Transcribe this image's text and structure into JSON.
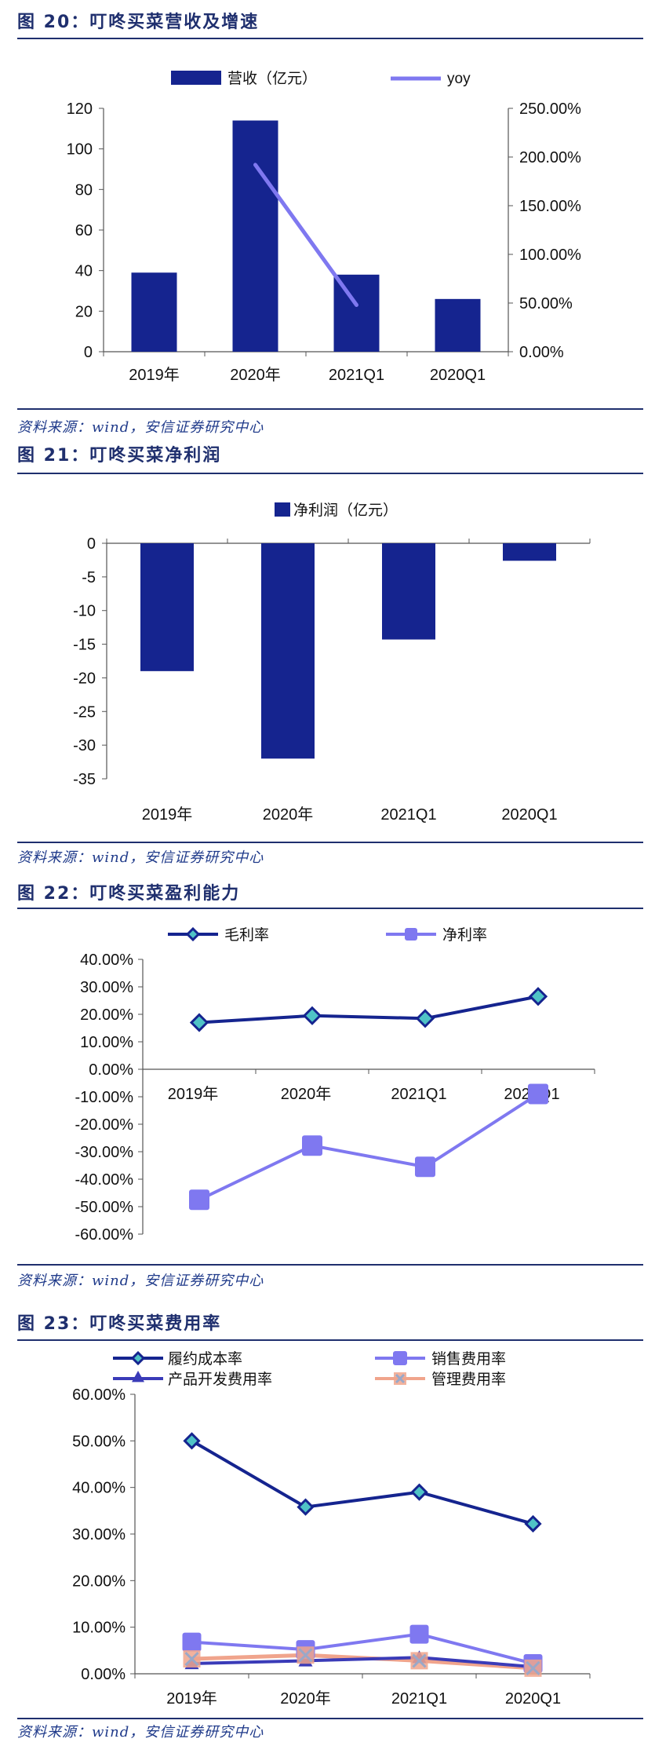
{
  "colors": {
    "navy": "#15248f",
    "lavender": "#7f78f0",
    "salmon": "#f0a48c",
    "teal": "#4fc3c6",
    "title": "#1f2f6e"
  },
  "source_text": "资料来源：wind，安信证券研究中心",
  "charts": [
    {
      "fig_label": "图 20：",
      "fig_title": "叮咚买菜营收及增速",
      "chart_data": {
        "type": "bar+line",
        "categories": [
          "2019年",
          "2020年",
          "2021Q1",
          "2020Q1"
        ],
        "bar_series": {
          "name": "营收（亿元）",
          "values": [
            39,
            114,
            38,
            26
          ]
        },
        "line_series": {
          "name": "yoy",
          "values": [
            null,
            192,
            48,
            null
          ]
        },
        "y_left": {
          "min": 0,
          "max": 120,
          "ticks": [
            "0",
            "20",
            "40",
            "60",
            "80",
            "100",
            "120"
          ]
        },
        "y_right": {
          "min": 0,
          "max": 250,
          "ticks": [
            "0.00%",
            "50.00%",
            "100.00%",
            "150.00%",
            "200.00%",
            "250.00%"
          ]
        }
      }
    },
    {
      "fig_label": "图 21：",
      "fig_title": "叮咚买菜净利润",
      "chart_data": {
        "type": "bar",
        "categories": [
          "2019年",
          "2020年",
          "2021Q1",
          "2020Q1"
        ],
        "series": [
          {
            "name": "净利润（亿元）",
            "values": [
              -19,
              -32,
              -14.3,
              -2.6
            ]
          }
        ],
        "y": {
          "min": -35,
          "max": 0,
          "ticks": [
            "0",
            "-5",
            "-10",
            "-15",
            "-20",
            "-25",
            "-30",
            "-35"
          ]
        }
      }
    },
    {
      "fig_label": "图 22：",
      "fig_title": "叮咚买菜盈利能力",
      "chart_data": {
        "type": "line",
        "categories": [
          "2019年",
          "2020年",
          "2021Q1",
          "2020Q1"
        ],
        "series": [
          {
            "name": "毛利率",
            "values": [
              17,
              19.5,
              18.5,
              26.5
            ]
          },
          {
            "name": "净利率",
            "values": [
              -47.5,
              -27.8,
              -35.5,
              -9
            ]
          }
        ],
        "y": {
          "min": -60,
          "max": 40,
          "ticks": [
            "40.00%",
            "30.00%",
            "20.00%",
            "10.00%",
            "0.00%",
            "-10.00%",
            "-20.00%",
            "-30.00%",
            "-40.00%",
            "-50.00%",
            "-60.00%"
          ]
        }
      }
    },
    {
      "fig_label": "图 23：",
      "fig_title": "叮咚买菜费用率",
      "chart_data": {
        "type": "line",
        "categories": [
          "2019年",
          "2020年",
          "2021Q1",
          "2020Q1"
        ],
        "series": [
          {
            "name": "履约成本率",
            "values": [
              50,
              35.8,
              39,
              32.2
            ]
          },
          {
            "name": "销售费用率",
            "values": [
              6.8,
              5.2,
              8.5,
              2.2
            ]
          },
          {
            "name": "产品开发费用率",
            "values": [
              2.2,
              2.8,
              3.5,
              1.5
            ]
          },
          {
            "name": "管理费用率",
            "values": [
              3.2,
              4.0,
              2.8,
              1.2
            ]
          }
        ],
        "y": {
          "min": 0,
          "max": 60,
          "ticks": [
            "0.00%",
            "10.00%",
            "20.00%",
            "30.00%",
            "40.00%",
            "50.00%",
            "60.00%"
          ]
        }
      }
    }
  ]
}
